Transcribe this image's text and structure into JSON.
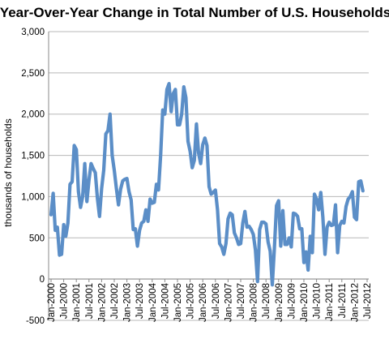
{
  "chart_data": {
    "type": "line",
    "title": "Year-Over-Year Change in Total Number of U.S. Households",
    "xlabel": "",
    "ylabel": "thousands of households",
    "ylim": [
      -500,
      3000
    ],
    "yticks": [
      -500,
      0,
      500,
      1000,
      1500,
      2000,
      2500,
      3000
    ],
    "ytick_labels": [
      "-500",
      "0",
      "500",
      "1,000",
      "1,500",
      "2,000",
      "2,500",
      "3,000"
    ],
    "xticks": [
      "Jan-2000",
      "Jul-2000",
      "Jan-2001",
      "Jul-2001",
      "Jan-2002",
      "Jul-2002",
      "Jan-2003",
      "Jul-2003",
      "Jan-2004",
      "Jul-2004",
      "Jan-2005",
      "Jul-2005",
      "Jan-2006",
      "Jul-2006",
      "Jan-2007",
      "Jul-2007",
      "Jan-2008",
      "Jul-2008",
      "Jan-2009",
      "Jul-2009",
      "Jan-2010",
      "Jul-2010",
      "Jan-2011",
      "Jul-2011",
      "Jan-2012",
      "Jul-2012"
    ],
    "grid": true,
    "legend": "none",
    "series_color": "#5b8ec7",
    "x_start": "Jan-2000",
    "x_step": "month",
    "values": [
      780,
      1040,
      590,
      630,
      290,
      300,
      660,
      520,
      680,
      1150,
      1180,
      1620,
      1570,
      1060,
      870,
      1000,
      1400,
      940,
      1200,
      1400,
      1340,
      1290,
      980,
      760,
      1100,
      1320,
      1760,
      1800,
      2000,
      1500,
      1320,
      1100,
      900,
      1090,
      1190,
      1210,
      1220,
      1060,
      960,
      600,
      610,
      400,
      590,
      680,
      700,
      840,
      700,
      970,
      920,
      930,
      1150,
      1080,
      1500,
      2050,
      2000,
      2300,
      2370,
      2030,
      2250,
      2300,
      1870,
      1870,
      2000,
      2330,
      2200,
      1670,
      1550,
      1350,
      1440,
      1880,
      1530,
      1400,
      1630,
      1710,
      1620,
      1120,
      1030,
      1050,
      1080,
      840,
      430,
      390,
      300,
      430,
      730,
      800,
      780,
      560,
      500,
      420,
      430,
      680,
      820,
      630,
      640,
      600,
      540,
      350,
      -30,
      600,
      690,
      690,
      670,
      450,
      340,
      -70,
      380,
      890,
      950,
      400,
      830,
      420,
      420,
      500,
      390,
      800,
      790,
      760,
      610,
      610,
      200,
      330,
      110,
      520,
      320,
      1030,
      970,
      840,
      1050,
      750,
      300,
      630,
      690,
      650,
      660,
      900,
      320,
      650,
      700,
      680,
      880,
      970,
      1000,
      1060,
      750,
      720,
      1180,
      1190,
      1070
    ]
  }
}
